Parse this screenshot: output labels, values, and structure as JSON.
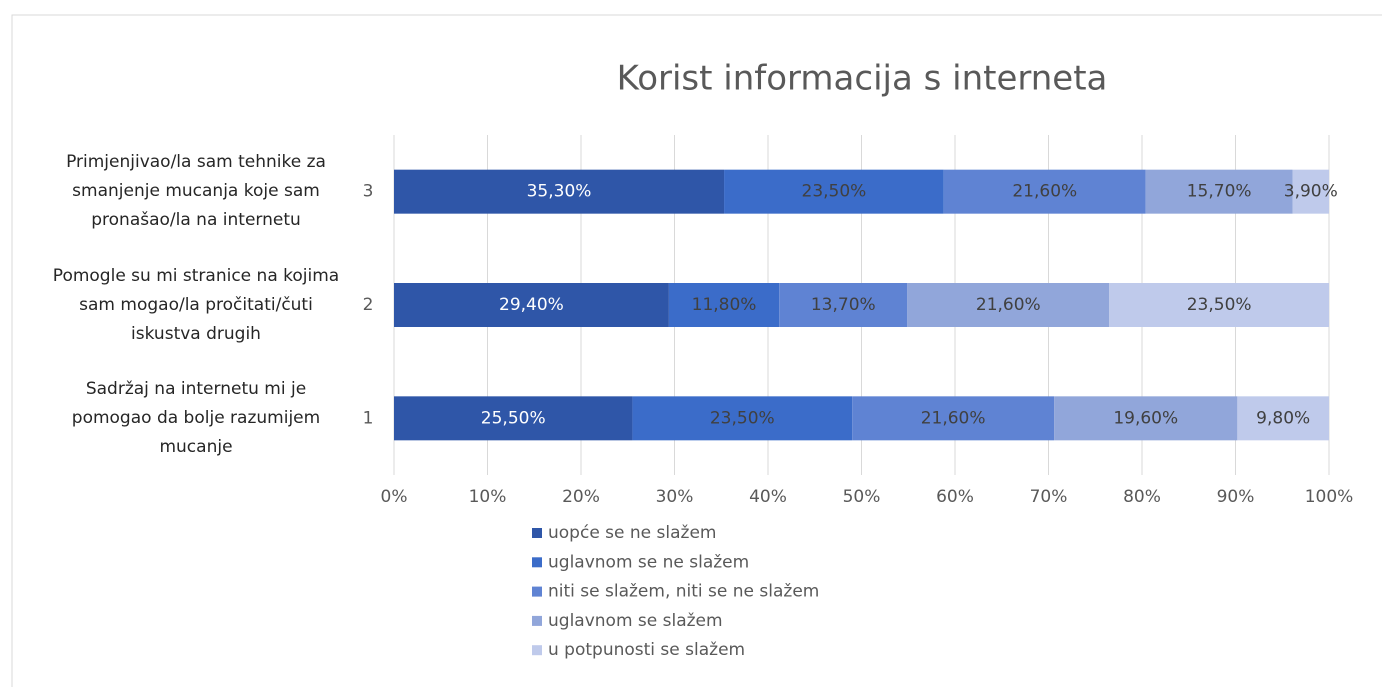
{
  "chart_data": {
    "type": "bar",
    "orientation": "horizontal",
    "stacked": true,
    "title": "Korist informacija s interneta",
    "categories": [
      "1",
      "2",
      "3"
    ],
    "category_descriptions": [
      "Sadržaj na internetu mi je pomogao da bolje razumijem mucanje",
      "Pomogle su mi stranice na kojima sam mogao/la pročitati/čuti iskustva drugih",
      "Primjenjivao/la sam tehnike za smanjenje mucanja koje sam pronašao/la na internetu"
    ],
    "series": [
      {
        "name": "uopće se ne slažem",
        "color": "#2f56a8",
        "values": [
          25.5,
          29.4,
          35.3
        ],
        "value_labels": [
          "25,50%",
          "29,40%",
          "35,30%"
        ]
      },
      {
        "name": "uglavnom se ne slažem",
        "color": "#3b6cc9",
        "values": [
          23.5,
          11.8,
          23.5
        ],
        "value_labels": [
          "23,50%",
          "11,80%",
          "23,50%"
        ]
      },
      {
        "name": "niti se slažem, niti se ne slažem",
        "color": "#5f83d3",
        "values": [
          21.6,
          13.7,
          21.6
        ],
        "value_labels": [
          "21,60%",
          "13,70%",
          "21,60%"
        ]
      },
      {
        "name": "uglavnom se slažem",
        "color": "#91a6da",
        "values": [
          19.6,
          21.6,
          15.7
        ],
        "value_labels": [
          "19,60%",
          "21,60%",
          "15,70%"
        ]
      },
      {
        "name": "u potpunosti se slažem",
        "color": "#bfcaeb",
        "values": [
          9.8,
          23.5,
          3.9
        ],
        "value_labels": [
          "9,80%",
          "23,50%",
          "3,90%"
        ]
      }
    ],
    "xlim": [
      0,
      100
    ],
    "xticks": [
      {
        "value": 0,
        "label": "0%"
      },
      {
        "value": 10,
        "label": "10%"
      },
      {
        "value": 20,
        "label": "20%"
      },
      {
        "value": 30,
        "label": "30%"
      },
      {
        "value": 40,
        "label": "40%"
      },
      {
        "value": 50,
        "label": "50%"
      },
      {
        "value": 60,
        "label": "60%"
      },
      {
        "value": 70,
        "label": "70%"
      },
      {
        "value": 80,
        "label": "80%"
      },
      {
        "value": 90,
        "label": "90%"
      },
      {
        "value": 100,
        "label": "100%"
      }
    ],
    "grid": true,
    "legend": "bottom"
  }
}
